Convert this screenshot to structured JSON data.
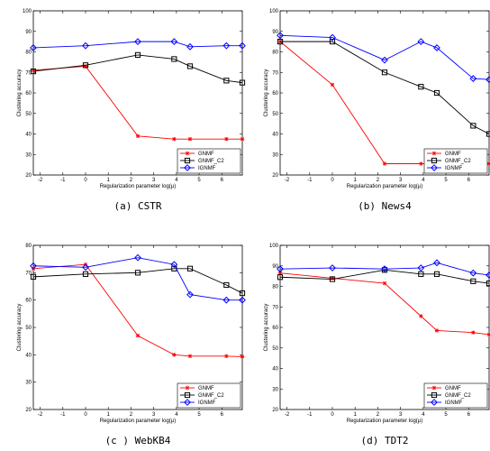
{
  "chart_data": [
    {
      "type": "line",
      "caption": "(a)  CSTR",
      "xlabel": "Regularization parameter log(μ)",
      "ylabel": "Clustering accuracy",
      "xlim": [
        -2.3,
        6.9
      ],
      "ylim": [
        20,
        100
      ],
      "xticks": [
        -2,
        -1,
        0,
        1,
        2,
        3,
        4,
        5,
        6
      ],
      "yticks": [
        20,
        30,
        40,
        50,
        60,
        70,
        80,
        90,
        100
      ],
      "legend_position": "bottom-right",
      "series": [
        {
          "name": "GNMF",
          "color": "#ff0000",
          "marker": "star",
          "x": [
            -2.3,
            0,
            2.3,
            3.9,
            4.6,
            6.2,
            6.9
          ],
          "y": [
            71,
            73,
            39,
            37.5,
            37.5,
            37.5,
            37.5
          ]
        },
        {
          "name": "GNMF_C2",
          "color": "#000000",
          "marker": "square",
          "x": [
            -2.3,
            0,
            2.3,
            3.9,
            4.6,
            6.2,
            6.9
          ],
          "y": [
            70.5,
            73.5,
            78.5,
            76.5,
            73,
            66,
            65
          ]
        },
        {
          "name": "IGNMF",
          "color": "#0000ff",
          "marker": "diamond",
          "x": [
            -2.3,
            0,
            2.3,
            3.9,
            4.6,
            6.2,
            6.9
          ],
          "y": [
            82,
            83,
            85,
            85,
            82.5,
            83,
            83
          ]
        }
      ]
    },
    {
      "type": "line",
      "caption": "(b)  News4",
      "xlabel": "Regularization parameter log(μ)",
      "ylabel": "Clustering accuracy",
      "xlim": [
        -2.3,
        6.9
      ],
      "ylim": [
        20,
        100
      ],
      "xticks": [
        -2,
        -1,
        0,
        1,
        2,
        3,
        4,
        5,
        6
      ],
      "yticks": [
        20,
        30,
        40,
        50,
        60,
        70,
        80,
        90,
        100
      ],
      "legend_position": "bottom-right",
      "series": [
        {
          "name": "GNMF",
          "color": "#ff0000",
          "marker": "star",
          "x": [
            -2.3,
            0,
            2.3,
            3.9,
            4.6,
            6.2,
            6.9
          ],
          "y": [
            85,
            64,
            25.5,
            25.5,
            25.5,
            25.5,
            25.5
          ]
        },
        {
          "name": "GNMF_C2",
          "color": "#000000",
          "marker": "square",
          "x": [
            -2.3,
            0,
            2.3,
            3.9,
            4.6,
            6.2,
            6.9
          ],
          "y": [
            85,
            85,
            70,
            63,
            60,
            44,
            40
          ]
        },
        {
          "name": "IGNMF",
          "color": "#0000ff",
          "marker": "diamond",
          "x": [
            -2.3,
            0,
            2.3,
            3.9,
            4.6,
            6.2,
            6.9
          ],
          "y": [
            88,
            87,
            76,
            85,
            82,
            67,
            66.5
          ]
        }
      ]
    },
    {
      "type": "line",
      "caption": "(c )  WebKB4",
      "xlabel": "Regularization parameter log(μ)",
      "ylabel": "Clustering accuracy",
      "xlim": [
        -2.3,
        6.9
      ],
      "ylim": [
        20,
        80
      ],
      "xticks": [
        -2,
        -1,
        0,
        1,
        2,
        3,
        4,
        5,
        6
      ],
      "yticks": [
        20,
        30,
        40,
        50,
        60,
        70,
        80
      ],
      "legend_position": "bottom-right",
      "series": [
        {
          "name": "GNMF",
          "color": "#ff0000",
          "marker": "star",
          "x": [
            -2.3,
            0,
            2.3,
            3.9,
            4.6,
            6.2,
            6.9
          ],
          "y": [
            71.5,
            73,
            47,
            40,
            39.5,
            39.5,
            39.3
          ]
        },
        {
          "name": "GNMF_C2",
          "color": "#000000",
          "marker": "square",
          "x": [
            -2.3,
            0,
            2.3,
            3.9,
            4.6,
            6.2,
            6.9
          ],
          "y": [
            68.5,
            69.5,
            70,
            71.5,
            71.5,
            65.5,
            62.5
          ]
        },
        {
          "name": "IGNMF",
          "color": "#0000ff",
          "marker": "diamond",
          "x": [
            -2.3,
            0,
            2.3,
            3.9,
            4.6,
            6.2,
            6.9
          ],
          "y": [
            72.5,
            72,
            75.5,
            73,
            62,
            60,
            60
          ]
        }
      ]
    },
    {
      "type": "line",
      "caption": "(d)  TDT2",
      "xlabel": "Regularization parameter log(μ)",
      "ylabel": "Clustering accuracy",
      "xlim": [
        -2.3,
        6.9
      ],
      "ylim": [
        20,
        100
      ],
      "xticks": [
        -2,
        -1,
        0,
        1,
        2,
        3,
        4,
        5,
        6
      ],
      "yticks": [
        20,
        30,
        40,
        50,
        60,
        70,
        80,
        90,
        100
      ],
      "legend_position": "bottom-right",
      "series": [
        {
          "name": "GNMF",
          "color": "#ff0000",
          "marker": "star",
          "x": [
            -2.3,
            0,
            2.3,
            3.9,
            4.6,
            6.2,
            6.9
          ],
          "y": [
            86.5,
            84,
            81.5,
            65.5,
            58.5,
            57.5,
            56.5
          ]
        },
        {
          "name": "GNMF_C2",
          "color": "#000000",
          "marker": "square",
          "x": [
            -2.3,
            0,
            2.3,
            3.9,
            4.6,
            6.2,
            6.9
          ],
          "y": [
            84.5,
            83.5,
            88,
            86,
            86,
            82.5,
            81.5
          ]
        },
        {
          "name": "IGNMF",
          "color": "#0000ff",
          "marker": "diamond",
          "x": [
            -2.3,
            0,
            2.3,
            3.9,
            4.6,
            6.2,
            6.9
          ],
          "y": [
            88.5,
            89,
            88.5,
            89,
            91.5,
            86.5,
            85.5
          ]
        }
      ]
    }
  ]
}
